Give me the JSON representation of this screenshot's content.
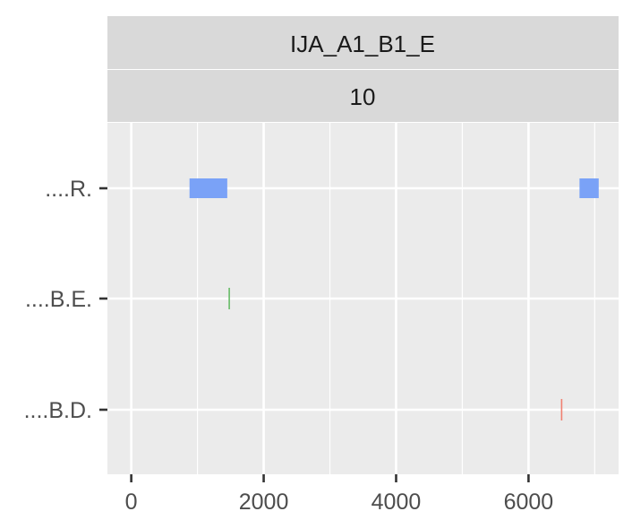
{
  "chart_data": {
    "type": "range",
    "facet_strips": [
      "IJA_A1_B1_E",
      "10"
    ],
    "categories": [
      "....R.",
      "....B.E.",
      "....B.D."
    ],
    "xlim": [
      -360,
      7360
    ],
    "x_ticks": [
      0,
      2000,
      4000,
      6000
    ],
    "x_minor_ticks": [
      1000,
      3000,
      5000,
      7000
    ],
    "grid": true,
    "legend": "none",
    "segments": [
      {
        "category": "....R.",
        "start": 880,
        "end": 1450,
        "kind": "bar",
        "color": "#7aa2f7"
      },
      {
        "category": "....R.",
        "start": 6770,
        "end": 7060,
        "kind": "bar",
        "color": "#7aa2f7"
      },
      {
        "category": "....B.E.",
        "start": 1480,
        "end": 1490,
        "kind": "line",
        "color": "#66bb66"
      },
      {
        "category": "....B.D.",
        "start": 6500,
        "end": 6510,
        "kind": "line",
        "color": "#f08070"
      }
    ]
  }
}
